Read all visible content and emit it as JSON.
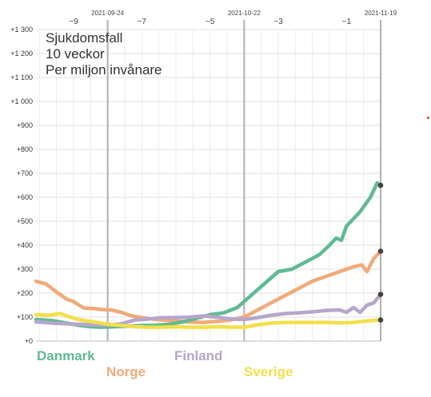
{
  "title": [
    "Sjukdomsfall",
    "10 veckor",
    "Per miljon invånare"
  ],
  "colors": {
    "Danmark": "#5fba94",
    "Norge": "#f0aa7a",
    "Finland": "#b6a6cc",
    "Sverige": "#f2e04a",
    "endpoint": "#444444",
    "marker": "#e8332a"
  },
  "chart_data": {
    "type": "line",
    "title": "Sjukdomsfall 10 veckor Per miljon invånare",
    "ylim": [
      0,
      1300
    ],
    "yticks": [
      {
        "v": 0,
        "label": "+0"
      },
      {
        "v": 100,
        "label": "+100"
      },
      {
        "v": 200,
        "label": "+200"
      },
      {
        "v": 300,
        "label": "+300"
      },
      {
        "v": 400,
        "label": "+400"
      },
      {
        "v": 500,
        "label": "+500"
      },
      {
        "v": 600,
        "label": "+600"
      },
      {
        "v": 700,
        "label": "+700"
      },
      {
        "v": 800,
        "label": "+800"
      },
      {
        "v": 900,
        "label": "+900"
      },
      {
        "v": 1000,
        "label": "+1 000"
      },
      {
        "v": 1100,
        "label": "+1 100"
      },
      {
        "v": 1200,
        "label": "+1 200"
      },
      {
        "v": 1300,
        "label": "+1 300"
      }
    ],
    "xlim": [
      -10.1,
      0
    ],
    "xticks": [
      {
        "v": -9,
        "label": "−9"
      },
      {
        "v": -7,
        "label": "−7"
      },
      {
        "v": -5,
        "label": "−5"
      },
      {
        "v": -3,
        "label": "−3"
      },
      {
        "v": -1,
        "label": "−1"
      }
    ],
    "date_markers": [
      {
        "v": -8,
        "label": "2021-09-24"
      },
      {
        "v": -4,
        "label": "2021-10-22"
      },
      {
        "v": 0,
        "label": "2021-11-19"
      }
    ],
    "series": [
      {
        "name": "Norge",
        "x": [
          -10.1,
          -9.8,
          -9.5,
          -9.2,
          -9.0,
          -8.7,
          -8.4,
          -8.2,
          -7.9,
          -7.6,
          -7.3,
          -7.0,
          -6.7,
          -6.4,
          -6.0,
          -5.6,
          -5.2,
          -4.8,
          -4.4,
          -4.0,
          -3.6,
          -3.2,
          -2.8,
          -2.4,
          -2.0,
          -1.6,
          -1.2,
          -0.8,
          -0.55,
          -0.4,
          -0.2,
          0.0
        ],
        "y": [
          250,
          238,
          205,
          175,
          165,
          138,
          136,
          132,
          130,
          120,
          105,
          98,
          92,
          88,
          84,
          80,
          78,
          82,
          88,
          100,
          130,
          160,
          190,
          220,
          250,
          270,
          290,
          310,
          318,
          290,
          345,
          375
        ]
      },
      {
        "name": "Danmark",
        "x": [
          -10.1,
          -9.6,
          -9.2,
          -8.8,
          -8.5,
          -8.2,
          -7.8,
          -7.4,
          -7.0,
          -6.6,
          -6.2,
          -5.8,
          -5.4,
          -5.0,
          -4.6,
          -4.2,
          -3.8,
          -3.4,
          -3.0,
          -2.6,
          -2.2,
          -1.8,
          -1.5,
          -1.3,
          -1.15,
          -1.0,
          -0.8,
          -0.6,
          -0.3,
          -0.1,
          0.0
        ],
        "y": [
          90,
          85,
          75,
          65,
          60,
          58,
          60,
          62,
          65,
          66,
          70,
          80,
          95,
          110,
          118,
          140,
          190,
          240,
          290,
          300,
          330,
          360,
          400,
          430,
          420,
          480,
          510,
          540,
          600,
          660,
          650
        ]
      },
      {
        "name": "Finland",
        "x": [
          -10.1,
          -9.6,
          -9.2,
          -8.8,
          -8.4,
          -8.0,
          -7.6,
          -7.2,
          -6.8,
          -6.4,
          -6.0,
          -5.6,
          -5.2,
          -4.8,
          -4.4,
          -4.0,
          -3.6,
          -3.2,
          -2.8,
          -2.4,
          -2.0,
          -1.6,
          -1.2,
          -1.0,
          -0.8,
          -0.6,
          -0.4,
          -0.2,
          0.0
        ],
        "y": [
          80,
          75,
          72,
          70,
          68,
          66,
          72,
          88,
          92,
          98,
          98,
          100,
          105,
          100,
          92,
          90,
          98,
          108,
          115,
          118,
          122,
          128,
          130,
          120,
          140,
          120,
          150,
          160,
          195
        ]
      },
      {
        "name": "Sverige",
        "x": [
          -10.1,
          -9.7,
          -9.4,
          -9.1,
          -8.8,
          -8.4,
          -8.0,
          -7.6,
          -7.2,
          -6.8,
          -6.4,
          -6.0,
          -5.6,
          -5.2,
          -4.8,
          -4.4,
          -4.0,
          -3.6,
          -3.2,
          -2.8,
          -2.4,
          -2.0,
          -1.6,
          -1.2,
          -0.8,
          -0.4,
          0.0
        ],
        "y": [
          110,
          108,
          115,
          100,
          88,
          80,
          70,
          65,
          60,
          58,
          58,
          60,
          58,
          58,
          60,
          58,
          58,
          68,
          75,
          78,
          78,
          78,
          78,
          76,
          78,
          84,
          88
        ]
      }
    ]
  },
  "legend": {
    "danmark": "Danmark",
    "norge": "Norge",
    "finland": "Finland",
    "sverige": "Sverige"
  }
}
